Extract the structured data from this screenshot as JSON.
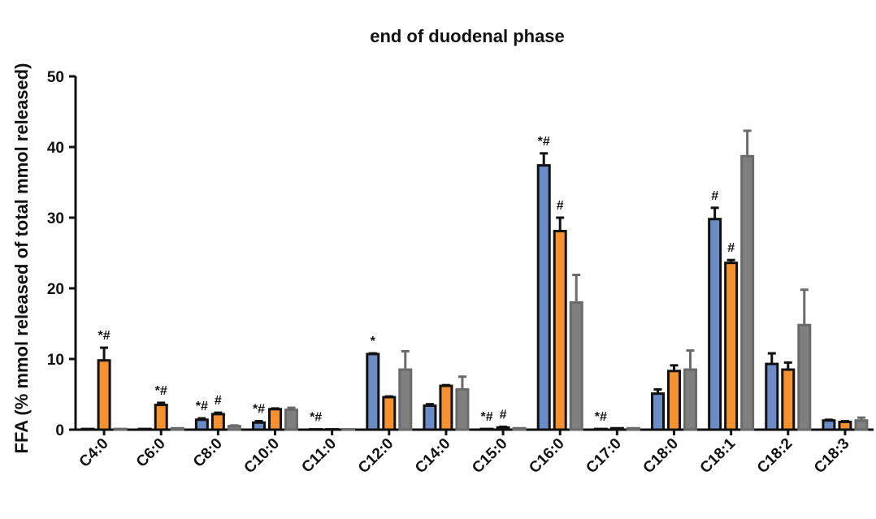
{
  "chart_data": {
    "type": "bar",
    "title": "end of duodenal phase",
    "ylabel": "FFA (% mmol released of total mmol released)",
    "categories": [
      "C4:0",
      "C6:0",
      "C8:0",
      "C10:0",
      "C11:0",
      "C12:0",
      "C14:0",
      "C15:0",
      "C16:0",
      "C17:0",
      "C18:0",
      "C18:1",
      "C18:2",
      "C18:3"
    ],
    "ylim": [
      0,
      50
    ],
    "yticks": [
      0,
      10,
      20,
      30,
      40,
      50
    ],
    "series": [
      {
        "color": "#6b8cc7",
        "edgecolor": "#111111",
        "values": [
          0.1,
          0.1,
          1.4,
          1.0,
          0.05,
          10.7,
          3.4,
          0.1,
          37.4,
          0.1,
          5.1,
          29.8,
          9.3,
          1.3
        ],
        "errors": [
          0,
          0,
          0.2,
          0.2,
          0,
          0.1,
          0.2,
          0,
          1.7,
          0,
          0.6,
          1.6,
          1.5,
          0.1
        ],
        "markers": [
          null,
          null,
          "*#",
          "*#",
          "*#",
          "*",
          null,
          "*#",
          "*#",
          "*#",
          null,
          "#",
          null,
          null
        ]
      },
      {
        "color": "#f5922f",
        "edgecolor": "#111111",
        "values": [
          9.8,
          3.5,
          2.2,
          2.9,
          0.05,
          4.6,
          6.2,
          0.3,
          28.1,
          0.2,
          8.3,
          23.6,
          8.5,
          1.1
        ],
        "errors": [
          1.8,
          0.3,
          0.2,
          0.1,
          0,
          0.1,
          0.1,
          0.1,
          1.9,
          0,
          0.8,
          0.4,
          1.0,
          0.1
        ],
        "markers": [
          "*#",
          "*#",
          "#",
          null,
          null,
          null,
          null,
          "#",
          "#",
          null,
          null,
          "#",
          null,
          null
        ]
      },
      {
        "color": "#7f7f7f",
        "edgecolor": "#6a6a6a",
        "values": [
          0.1,
          0.2,
          0.5,
          2.8,
          0.05,
          8.5,
          5.7,
          0.2,
          18.0,
          0.2,
          8.5,
          38.7,
          14.8,
          1.3
        ],
        "errors": [
          0,
          0,
          0.1,
          0.3,
          0,
          2.6,
          1.8,
          0,
          3.9,
          0,
          2.7,
          3.6,
          5.0,
          0.4
        ],
        "markers": [
          null,
          null,
          null,
          null,
          null,
          null,
          null,
          null,
          null,
          null,
          null,
          null,
          null,
          null
        ]
      }
    ]
  }
}
